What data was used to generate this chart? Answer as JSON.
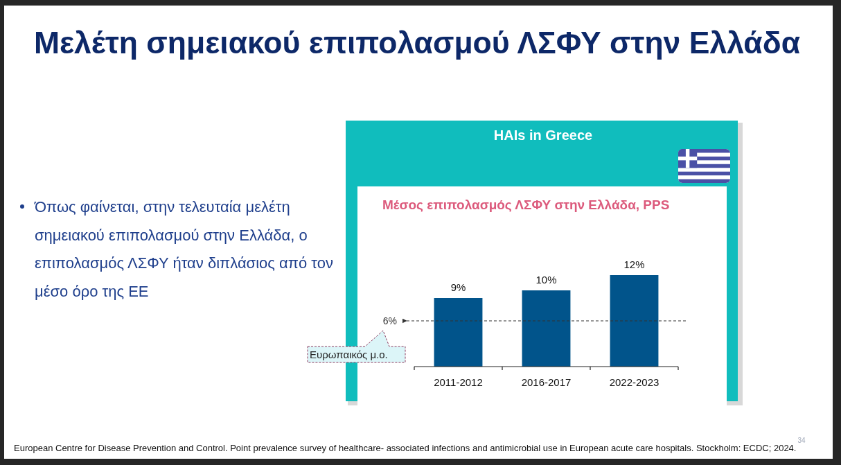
{
  "chart_data": {
    "type": "bar",
    "title": "Μελέτη σημειακού επιπολασμού ΛΣΦΥ στην Ελλάδα",
    "subtitle": "Μέσος επιπολασμός ΛΣΦΥ στην Ελλάδα, PPS",
    "categories": [
      "2011-2012",
      "2016-2017",
      "2022-2023"
    ],
    "values": [
      9,
      10,
      12
    ],
    "color": "#01548b",
    "value_labels": [
      "9%",
      "10%",
      "12%"
    ],
    "ref_lines": [
      {
        "axis": "y",
        "value": 6,
        "label": "6%",
        "line_style": "dashed",
        "color": "#333333"
      }
    ],
    "annotations": [
      "HAIs in Greece",
      "Όπως φαίνεται, στην τελευταία μελέτη σημειακού επιπολασμού στην Ελλάδα, ο επιπολασμός ΛΣΦΥ ήταν διπλάσιος από τον μέσο όρο της ΕΕ",
      "Ευρωπαικός μ.ο.",
      "European Centre for Disease Prevention and Control. Point prevalence survey of healthcare- associated infections and antimicrobial use in European acute care hospitals. Stockholm: ECDC; 2024.",
      "34"
    ]
  }
}
